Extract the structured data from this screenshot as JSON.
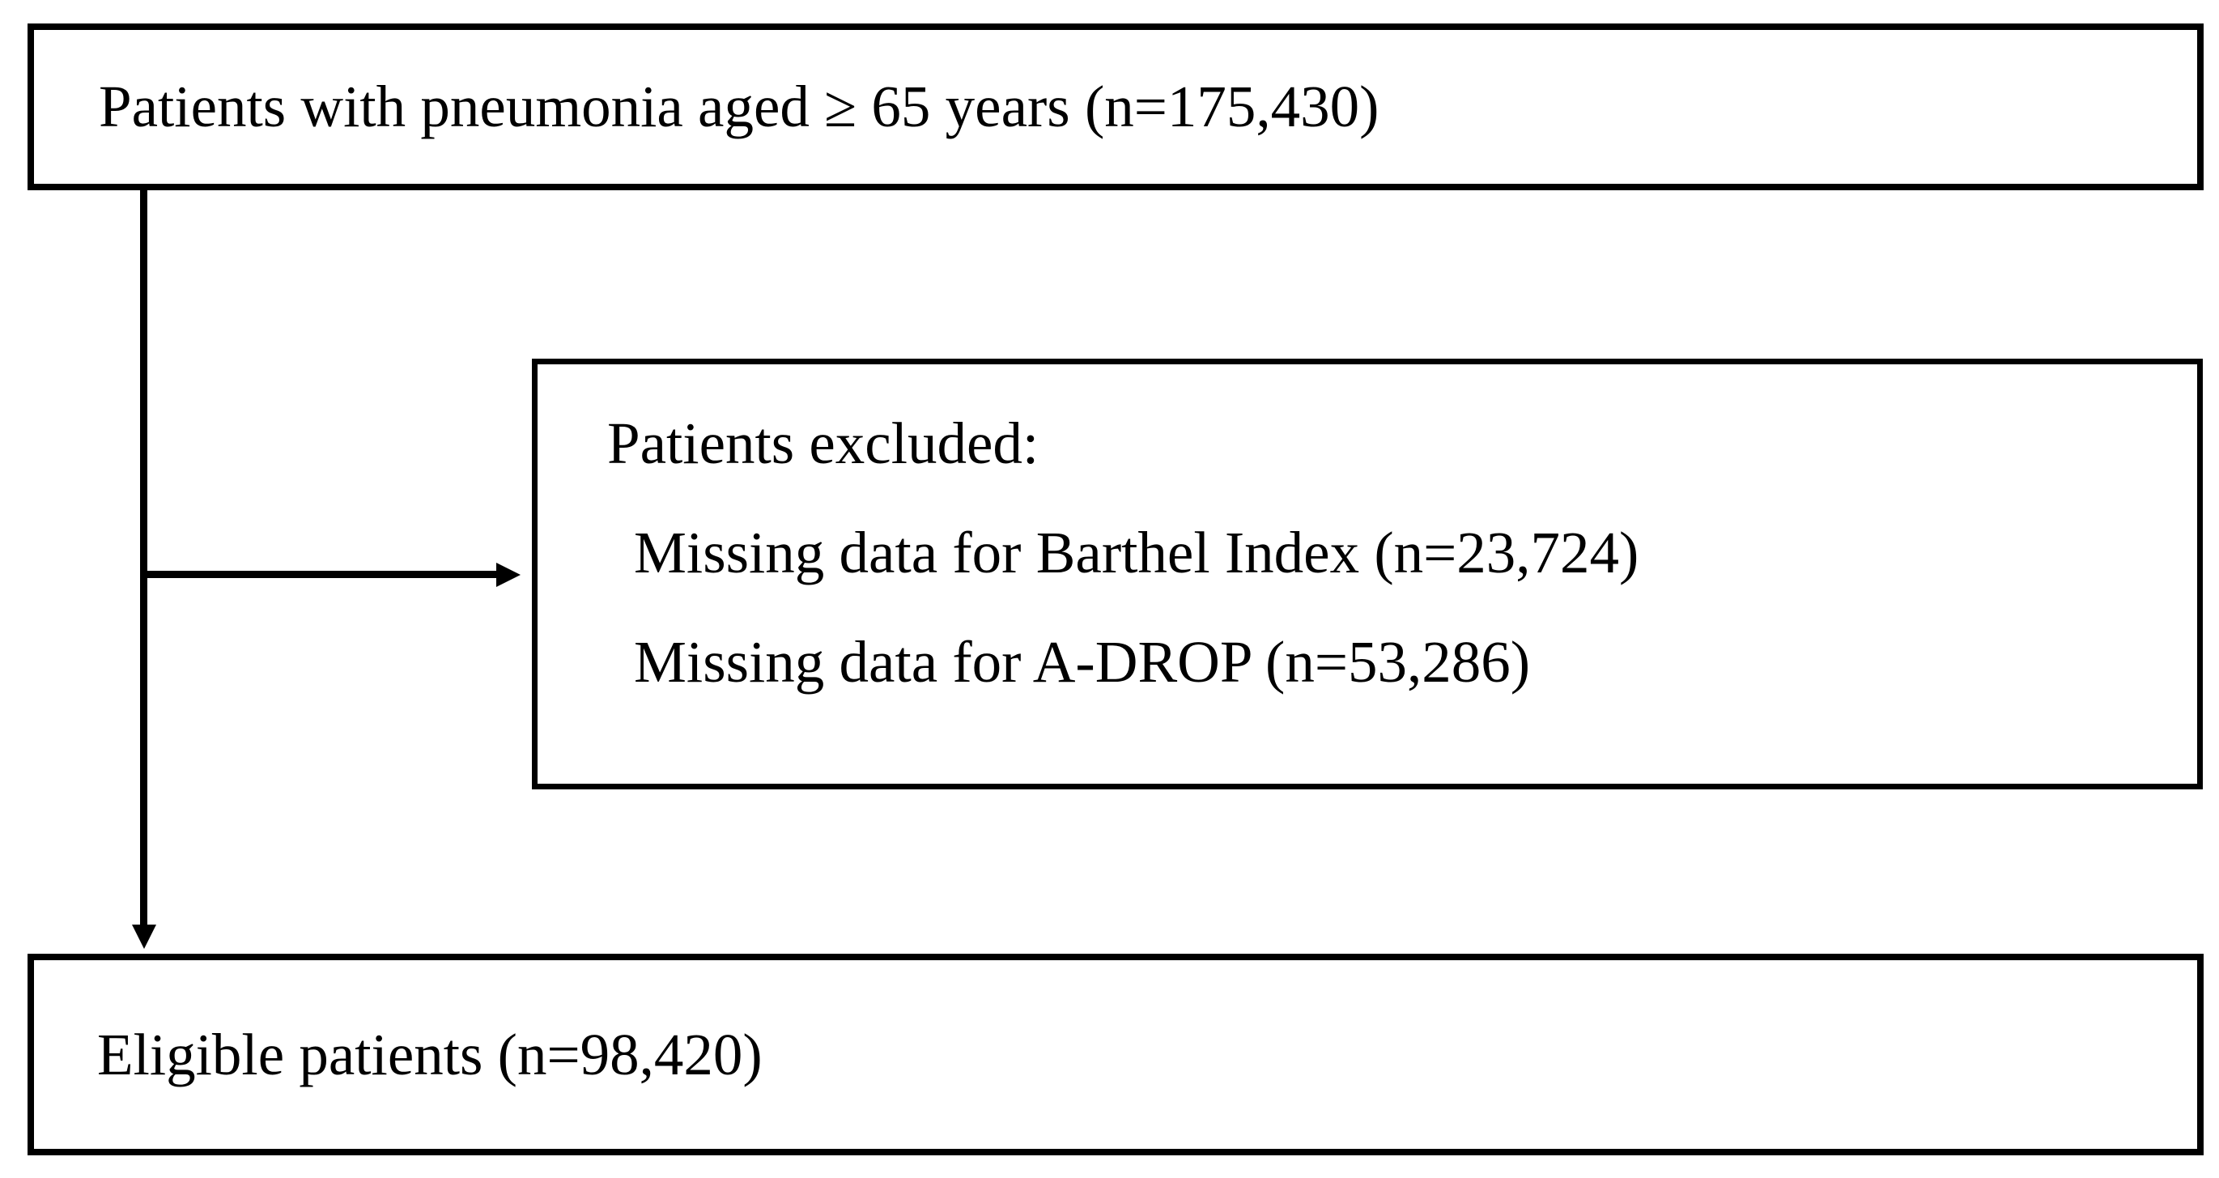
{
  "diagram": {
    "background_color": "#ffffff",
    "line_color": "#000000",
    "text_color": "#000000",
    "boxes": {
      "population": {
        "text": "Patients with pneumonia aged ≥ 65 years (n=175,430)"
      },
      "excluded": {
        "heading": "Patients excluded:",
        "items": [
          "Missing data for Barthel Index (n=23,724)",
          "Missing data for A-DROP (n=53,286)"
        ]
      },
      "eligible": {
        "text": "Eligible patients (n=98,420)"
      }
    }
  }
}
